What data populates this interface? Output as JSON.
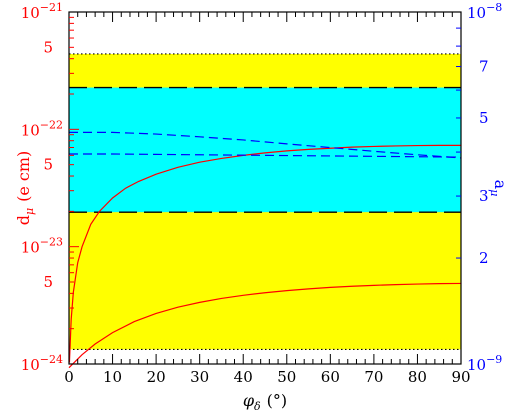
{
  "chart_data": {
    "type": "line",
    "title": "",
    "x_axis": {
      "label": "φ",
      "label_subscript": "δ",
      "unit": "(°)",
      "range": [
        0,
        90
      ],
      "ticks": [
        0,
        10,
        20,
        30,
        40,
        50,
        60,
        70,
        80,
        90
      ],
      "tick_labels": [
        "0",
        "10",
        "20",
        "30",
        "40",
        "50",
        "60",
        "70",
        "80",
        "90"
      ]
    },
    "y_left": {
      "label": "d",
      "label_subscript": "μ",
      "unit": "(e cm)",
      "scale": "log",
      "range": [
        1e-24,
        1e-21
      ],
      "major_tick_labels": [
        {
          "value": 1e-24,
          "base": "10",
          "exp": "−24"
        },
        {
          "value": 1e-23,
          "base": "10",
          "exp": "−23"
        },
        {
          "value": 1e-22,
          "base": "10",
          "exp": "−22"
        },
        {
          "value": 1e-21,
          "base": "10",
          "exp": "−21"
        }
      ],
      "minor_tick_labels": [
        {
          "value": 5e-24,
          "text": "5"
        },
        {
          "value": 5e-23,
          "text": "5"
        },
        {
          "value": 5e-22,
          "text": "5"
        }
      ],
      "color": "#ff0000"
    },
    "y_right": {
      "label": "a",
      "label_subscript": "μ",
      "scale": "log",
      "range": [
        1e-09,
        1e-08
      ],
      "major_tick_labels": [
        {
          "value": 1e-09,
          "base": "10",
          "exp": "−9"
        },
        {
          "value": 1e-08,
          "base": "10",
          "exp": "−8"
        }
      ],
      "minor_tick_labels": [
        {
          "value": 2e-09,
          "text": "2"
        },
        {
          "value": 3e-09,
          "text": "3"
        },
        {
          "value": 5e-09,
          "text": "5"
        },
        {
          "value": 7e-09,
          "text": "7"
        }
      ],
      "color": "#0000ff"
    },
    "bands": [
      {
        "name": "",
        "axis": "right",
        "range": [
          1.1e-09,
          7.6e-09
        ],
        "color": "#ffff00",
        "border": "dotted"
      },
      {
        "name": "",
        "axis": "right",
        "range": [
          2.7e-09,
          6.1e-09
        ],
        "color": "#00ffff",
        "border": "long-dash"
      }
    ],
    "series": [
      {
        "name": "",
        "axis": "left",
        "color": "#ff0000",
        "style": "solid",
        "x": [
          0.1,
          0.5,
          1,
          2,
          3,
          5,
          7,
          10,
          13,
          16,
          20,
          25,
          30,
          35,
          40,
          45,
          50,
          55,
          60,
          65,
          70,
          75,
          80,
          85,
          90
        ],
        "y": [
          1.03e-24,
          2.4e-24,
          4.1e-24,
          7.3e-24,
          1e-23,
          1.55e-23,
          2e-23,
          2.6e-23,
          3.15e-23,
          3.6e-23,
          4.15e-23,
          4.75e-23,
          5.25e-23,
          5.65e-23,
          6e-23,
          6.3e-23,
          6.55e-23,
          6.75e-23,
          6.9e-23,
          7.05e-23,
          7.15e-23,
          7.22e-23,
          7.27e-23,
          7.3e-23,
          7.3e-23
        ]
      },
      {
        "name": "",
        "axis": "left",
        "color": "#ff0000",
        "style": "solid",
        "x": [
          0,
          3,
          6,
          10,
          15,
          20,
          25,
          30,
          35,
          40,
          45,
          50,
          55,
          60,
          65,
          70,
          75,
          80,
          85,
          90
        ],
        "y": [
          9.3e-25,
          1.2e-24,
          1.48e-24,
          1.85e-24,
          2.3e-24,
          2.7e-24,
          3.05e-24,
          3.35e-24,
          3.62e-24,
          3.85e-24,
          4.05e-24,
          4.22e-24,
          4.37e-24,
          4.5e-24,
          4.6e-24,
          4.68e-24,
          4.75e-24,
          4.8e-24,
          4.84e-24,
          4.86e-24
        ]
      },
      {
        "name": "",
        "axis": "right",
        "color": "#0000ff",
        "style": "dashed",
        "x": [
          0,
          10,
          20,
          30,
          40,
          50,
          60,
          70,
          80,
          90
        ],
        "y": [
          4.55e-09,
          4.55e-09,
          4.5e-09,
          4.42e-09,
          4.33e-09,
          4.22e-09,
          4.12e-09,
          4.02e-09,
          3.93e-09,
          3.85e-09
        ]
      },
      {
        "name": "",
        "axis": "right",
        "color": "#0000ff",
        "style": "dashed",
        "x": [
          0,
          10,
          20,
          30,
          40,
          50,
          60,
          70,
          80,
          90
        ],
        "y": [
          3.95e-09,
          3.95e-09,
          3.94e-09,
          3.93e-09,
          3.92e-09,
          3.91e-09,
          3.9e-09,
          3.89e-09,
          3.88e-09,
          3.87e-09
        ]
      }
    ],
    "grid": false,
    "legend": "none"
  }
}
